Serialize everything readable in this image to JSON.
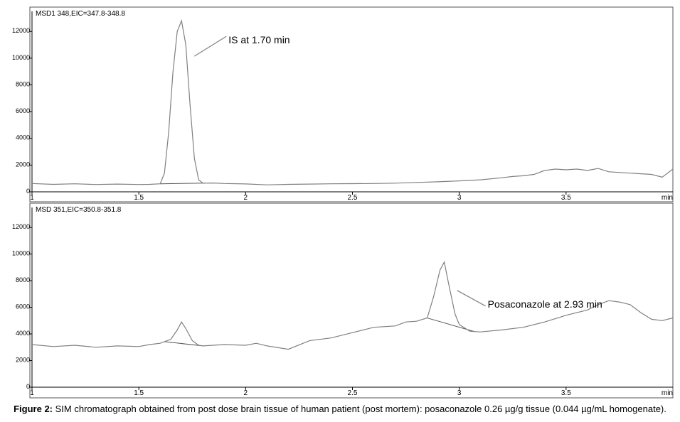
{
  "chart_data": [
    {
      "type": "line",
      "title": "MSD1 348,EIC=347.8-348.8",
      "xlabel": "min",
      "ylabel": "",
      "xlim": [
        1.0,
        4.0
      ],
      "ylim": [
        0,
        13500
      ],
      "x_ticks": [
        1,
        1.5,
        2,
        2.5,
        3,
        3.5
      ],
      "x_tick_labels": [
        "1",
        "1.5",
        "2",
        "2.5",
        "3",
        "3.5"
      ],
      "y_ticks": [
        0,
        2000,
        4000,
        6000,
        8000,
        10000,
        12000
      ],
      "y_tick_labels": [
        "0",
        "2000",
        "4000",
        "6000",
        "8000",
        "10000",
        "12000"
      ],
      "grid": false,
      "series": [
        {
          "x": [
            1.0,
            1.1,
            1.2,
            1.3,
            1.4,
            1.5,
            1.55,
            1.6,
            1.62,
            1.64,
            1.66,
            1.68,
            1.7,
            1.72,
            1.74,
            1.76,
            1.78,
            1.8,
            1.85,
            1.9,
            2.0,
            2.1,
            2.2,
            2.3,
            2.4,
            2.5,
            2.6,
            2.7,
            2.8,
            2.9,
            3.0,
            3.1,
            3.2,
            3.25,
            3.3,
            3.35,
            3.4,
            3.45,
            3.5,
            3.55,
            3.6,
            3.65,
            3.7,
            3.8,
            3.9,
            3.95,
            4.0
          ],
          "y": [
            620,
            560,
            600,
            550,
            580,
            550,
            560,
            600,
            1400,
            4500,
            9000,
            12000,
            12800,
            11000,
            6500,
            2500,
            900,
            650,
            660,
            620,
            590,
            520,
            560,
            580,
            600,
            610,
            620,
            650,
            700,
            750,
            820,
            900,
            1050,
            1150,
            1200,
            1300,
            1600,
            1700,
            1650,
            1700,
            1600,
            1750,
            1500,
            1400,
            1300,
            1100,
            1700
          ]
        }
      ],
      "annotations": [
        {
          "text": "IS at 1.70 min",
          "x": 1.7,
          "y": 12800
        }
      ]
    },
    {
      "type": "line",
      "title": "MSD 351,EIC=350.8-351.8",
      "xlabel": "min",
      "ylabel": "",
      "xlim": [
        1.0,
        4.0
      ],
      "ylim": [
        0,
        13500
      ],
      "x_ticks": [
        1,
        1.5,
        2,
        2.5,
        3,
        3.5
      ],
      "x_tick_labels": [
        "1",
        "1.5",
        "2",
        "2.5",
        "3",
        "3.5"
      ],
      "y_ticks": [
        0,
        2000,
        4000,
        6000,
        8000,
        10000,
        12000
      ],
      "y_tick_labels": [
        "0",
        "2000",
        "4000",
        "6000",
        "8000",
        "10000",
        "12000"
      ],
      "grid": false,
      "series": [
        {
          "x": [
            1.0,
            1.1,
            1.2,
            1.3,
            1.4,
            1.5,
            1.55,
            1.6,
            1.65,
            1.68,
            1.7,
            1.72,
            1.75,
            1.78,
            1.8,
            1.9,
            2.0,
            2.05,
            2.1,
            2.2,
            2.3,
            2.4,
            2.5,
            2.6,
            2.7,
            2.75,
            2.8,
            2.85,
            2.88,
            2.91,
            2.93,
            2.95,
            2.98,
            3.0,
            3.05,
            3.1,
            3.2,
            3.3,
            3.4,
            3.5,
            3.6,
            3.65,
            3.7,
            3.75,
            3.8,
            3.85,
            3.9,
            3.95,
            4.0
          ],
          "y": [
            3200,
            3050,
            3150,
            3000,
            3100,
            3050,
            3200,
            3300,
            3600,
            4300,
            4900,
            4400,
            3500,
            3150,
            3100,
            3200,
            3150,
            3300,
            3100,
            2850,
            3500,
            3700,
            4100,
            4500,
            4600,
            4900,
            4950,
            5200,
            6800,
            8800,
            9400,
            7800,
            5500,
            4700,
            4200,
            4150,
            4300,
            4500,
            4900,
            5400,
            5800,
            6200,
            6500,
            6400,
            6200,
            5600,
            5100,
            5000,
            5200
          ]
        }
      ],
      "annotations": [
        {
          "text": "Posaconazole at 2.93 min",
          "x": 2.93,
          "y": 9400
        }
      ]
    }
  ],
  "caption": {
    "label": "Figure 2:",
    "text": " SIM chromatograph obtained from post dose brain tissue of human patient (post mortem): posaconazole 0.26 µg/g tissue (0.044 µg/mL homogenate)."
  }
}
